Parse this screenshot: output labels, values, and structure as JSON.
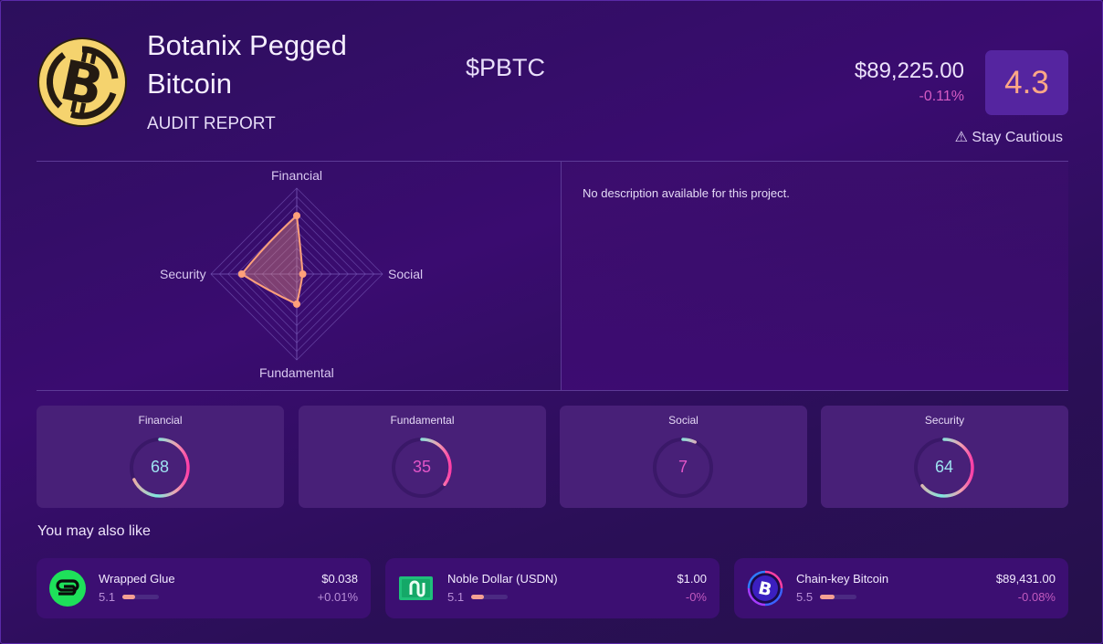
{
  "header": {
    "name": "Botanix Pegged Bitcoin",
    "subtitle": "AUDIT REPORT",
    "ticker": "$PBTC",
    "price": "$89,225.00",
    "change": "-0.11%",
    "score": "4.3",
    "caution": "⚠ Stay Cautious",
    "logo_icon": "bitcoin-icon"
  },
  "description": "No description available for this project.",
  "chart_data": {
    "type": "radar",
    "categories": [
      "Financial",
      "Social",
      "Fundamental",
      "Security"
    ],
    "values": [
      68,
      7,
      35,
      64
    ],
    "range": [
      0,
      100
    ],
    "rings": 10,
    "series_color": "#ffa07a"
  },
  "gauges": [
    {
      "label": "Financial",
      "value": "68",
      "pct": 68,
      "text_color": "#9ee3f0"
    },
    {
      "label": "Fundamental",
      "value": "35",
      "pct": 35,
      "text_color": "#e255c8"
    },
    {
      "label": "Social",
      "value": "7",
      "pct": 7,
      "text_color": "#e255c8"
    },
    {
      "label": "Security",
      "value": "64",
      "pct": 64,
      "text_color": "#9ee3f0"
    }
  ],
  "recommendations": {
    "title": "You may also like",
    "items": [
      {
        "name": "Wrapped Glue",
        "score": "5.1",
        "bar_pct": 51,
        "price": "$0.038",
        "change": "+0.01%",
        "change_color": "#b98fd8",
        "icon": "glue-icon"
      },
      {
        "name": "Noble Dollar (USDN)",
        "score": "5.1",
        "bar_pct": 51,
        "price": "$1.00",
        "change": "-0%",
        "change_color": "#c25abf",
        "icon": "noble-dollar-icon"
      },
      {
        "name": "Chain-key Bitcoin",
        "score": "5.5",
        "bar_pct": 55,
        "price": "$89,431.00",
        "change": "-0.08%",
        "change_color": "#c25abf",
        "icon": "chain-key-bitcoin-icon"
      }
    ]
  }
}
